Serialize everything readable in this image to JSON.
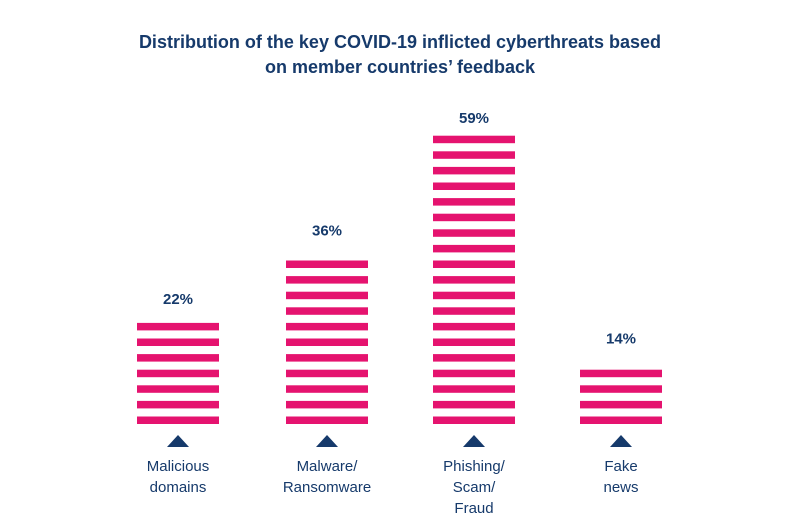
{
  "colors": {
    "bar": "#e5136f",
    "text": "#163a6b",
    "marker": "#163a6b",
    "background": "#ffffff"
  },
  "chart_data": {
    "type": "bar",
    "title_lines": [
      "Distribution of the key COVID-19 inflicted cyberthreats based",
      "on member countries’ feedback"
    ],
    "categories": [
      [
        "Malicious",
        "domains"
      ],
      [
        "Malware/",
        "Ransomware"
      ],
      [
        "Phishing/",
        "Scam/",
        "Fraud"
      ],
      [
        "Fake",
        "news"
      ]
    ],
    "values": [
      22,
      36,
      59,
      14
    ],
    "value_labels": [
      "22%",
      "36%",
      "59%",
      "14%"
    ],
    "unit": "%",
    "bar_style": "horizontal stripes",
    "axis_marker": "triangle-up",
    "grid": false,
    "legend": "none"
  }
}
